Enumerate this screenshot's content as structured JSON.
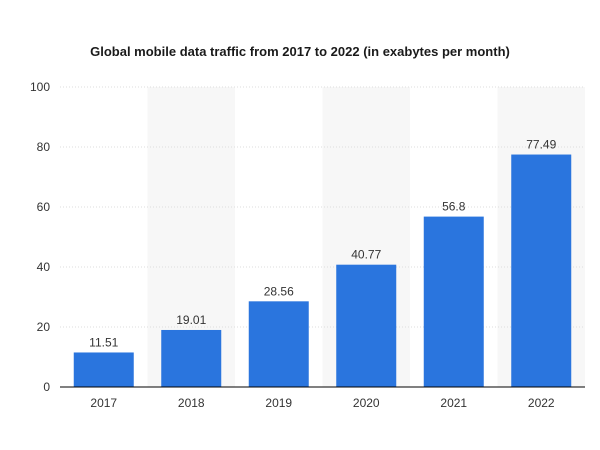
{
  "colors": {
    "bar": "#2a75de",
    "band": "#f7f7f7",
    "grid": "#dcdcdc",
    "axis": "#000000",
    "text": "#333333"
  },
  "chart_data": {
    "type": "bar",
    "title": "Global mobile data traffic from 2017 to 2022 (in exabytes per month)",
    "xlabel": "",
    "ylabel": "",
    "categories": [
      "2017",
      "2018",
      "2019",
      "2020",
      "2021",
      "2022"
    ],
    "values": [
      11.51,
      19.01,
      28.56,
      40.77,
      56.8,
      77.49
    ],
    "value_labels": [
      "11.51",
      "19.01",
      "28.56",
      "40.77",
      "56.8",
      "77.49"
    ],
    "ylim": [
      0,
      100
    ],
    "yticks": [
      0,
      20,
      40,
      60,
      80,
      100
    ],
    "ytick_labels": [
      "0",
      "20",
      "40",
      "60",
      "80",
      "100"
    ],
    "grid": true,
    "legend": "none"
  }
}
